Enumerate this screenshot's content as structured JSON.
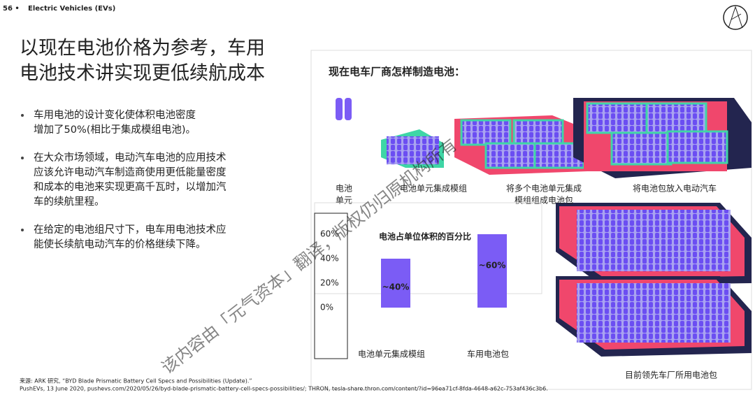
{
  "header": {
    "page": "56 •",
    "section": "Electric Vehicles (EVs)"
  },
  "title": [
    "以现在电池价格为参考，车用",
    "电池技术讲实现更低续航成本"
  ],
  "bullets": [
    [
      "车用电池的设计变化使体积电池密度",
      "增加了50%(相比于集成模组电池)。"
    ],
    [
      "在大众市场领域，电动汽车电池的应用技术",
      "应该允许电动汽车制造商使用更低能量密度",
      "和成本的电池来实现更高千瓦时，以增加汽",
      "车的续航里程。"
    ],
    [
      "在给定的电池组尺寸下，电车用电池技术应",
      "能使长续航电动汽车的价格继续下降。"
    ]
  ],
  "panel": {
    "heading": "现在电车厂商怎样制造电池：",
    "steps": [
      [
        "电池",
        "单元"
      ],
      [
        "电池单元集成模组"
      ],
      [
        "将多个电池单元集成",
        "模组组成电池包"
      ],
      [
        "将电池包放入电动汽车"
      ]
    ],
    "caption": "目前领先车厂所用电池包"
  },
  "chart_data": {
    "type": "bar",
    "title": "电池占单位体积的百分比",
    "categories": [
      "电池单元集成模组",
      "车用电池包"
    ],
    "values": [
      40,
      60
    ],
    "value_labels": [
      "~40%",
      "~60%"
    ],
    "color": "#7b5cf5",
    "ylim": [
      0,
      60
    ],
    "yticks": [
      {
        "value": 0,
        "label": "0%"
      },
      {
        "value": 20,
        "label": "20%"
      },
      {
        "value": 40,
        "label": "40%"
      },
      {
        "value": 60,
        "label": "60%"
      }
    ]
  },
  "footer": [
    "来源: ARK 研究, “BYD Blade Prismatic Battery Cell Specs and Possibilities (Update).”",
    "PushEVs, 13 June 2020, pushevs.com/2020/05/26/byd-blade-prismatic-battery-cell-specs-possibilities/; THRON, tesla-share.thron.com/content/?id=96ea71cf-8fda-4648-a62c-753af436c3b6."
  ],
  "watermark": "该内容由「元气资本」翻译，版权仍归原机构所有"
}
